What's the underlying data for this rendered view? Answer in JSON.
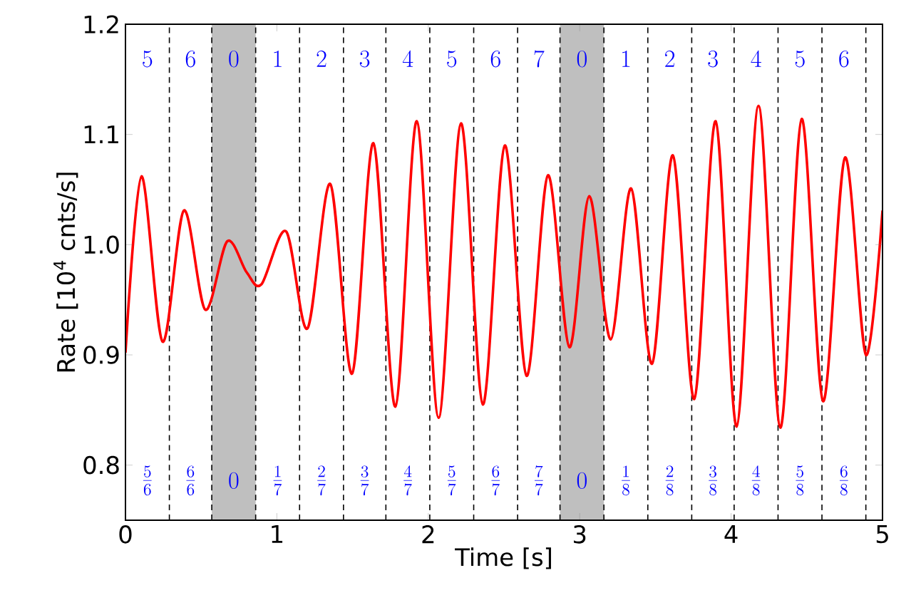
{
  "chart_data": {
    "type": "line",
    "xlabel": "Time [s]",
    "ylabel": "Rate [10$^{4}$ cnts/s]",
    "xlim": [
      0,
      5
    ],
    "ylim": [
      0.75,
      1.2
    ],
    "xticks": [
      0,
      1,
      2,
      3,
      4,
      5
    ],
    "yticks": [
      0.8,
      0.9,
      {
        "value": 1.0,
        "label": "1.0"
      },
      1.1,
      1.2
    ],
    "grid": false,
    "marker": "none",
    "line_style": "solid",
    "series": [
      {
        "color": "#ff0000",
        "x": [
          0,
          0.106,
          0.245,
          0.386,
          0.527,
          0.672,
          0.8,
          0.898,
          1.061,
          1.202,
          1.353,
          1.497,
          1.638,
          1.783,
          1.924,
          2.068,
          2.216,
          2.36,
          2.505,
          2.649,
          2.79,
          2.932,
          3.063,
          3.205,
          3.34,
          3.478,
          3.616,
          3.757,
          3.898,
          4.037,
          4.181,
          4.325,
          4.466,
          4.607,
          4.752,
          4.89,
          5.0
        ],
        "values": [
          0.902,
          1.062,
          0.912,
          1.031,
          0.941,
          1.003,
          0.975,
          0.964,
          1.012,
          0.924,
          1.055,
          0.883,
          1.092,
          0.853,
          1.112,
          0.843,
          1.11,
          0.855,
          1.09,
          0.881,
          1.063,
          0.907,
          1.044,
          0.914,
          1.051,
          0.892,
          1.081,
          0.86,
          1.112,
          0.835,
          1.126,
          0.834,
          1.114,
          0.858,
          1.079,
          0.9,
          1.031
        ]
      }
    ],
    "bands": [
      {
        "axis": "x",
        "from": 0.57,
        "to": 0.86,
        "color": "#bfbfbf"
      },
      {
        "axis": "x",
        "from": 2.87,
        "to": 3.16,
        "color": "#bfbfbf"
      }
    ],
    "ref_lines": [
      {
        "axis": "x",
        "value": 0.29,
        "color": "#000000",
        "line_style": "dashed"
      },
      {
        "axis": "x",
        "value": 0.57,
        "color": "#000000",
        "line_style": "dashed"
      },
      {
        "axis": "x",
        "value": 0.86,
        "color": "#000000",
        "line_style": "dashed"
      },
      {
        "axis": "x",
        "value": 1.15,
        "color": "#000000",
        "line_style": "dashed"
      },
      {
        "axis": "x",
        "value": 1.44,
        "color": "#000000",
        "line_style": "dashed"
      },
      {
        "axis": "x",
        "value": 1.72,
        "color": "#000000",
        "line_style": "dashed"
      },
      {
        "axis": "x",
        "value": 2.01,
        "color": "#000000",
        "line_style": "dashed"
      },
      {
        "axis": "x",
        "value": 2.3,
        "color": "#000000",
        "line_style": "dashed"
      },
      {
        "axis": "x",
        "value": 2.59,
        "color": "#000000",
        "line_style": "dashed"
      },
      {
        "axis": "x",
        "value": 2.87,
        "color": "#000000",
        "line_style": "dashed"
      },
      {
        "axis": "x",
        "value": 3.16,
        "color": "#000000",
        "line_style": "dashed"
      },
      {
        "axis": "x",
        "value": 3.45,
        "color": "#000000",
        "line_style": "dashed"
      },
      {
        "axis": "x",
        "value": 3.74,
        "color": "#000000",
        "line_style": "dashed"
      },
      {
        "axis": "x",
        "value": 4.02,
        "color": "#000000",
        "line_style": "dashed"
      },
      {
        "axis": "x",
        "value": 4.31,
        "color": "#000000",
        "line_style": "dashed"
      },
      {
        "axis": "x",
        "value": 4.6,
        "color": "#000000",
        "line_style": "dashed"
      },
      {
        "axis": "x",
        "value": 4.89,
        "color": "#000000",
        "line_style": "dashed"
      }
    ],
    "annotations": [
      "5",
      "6",
      "0",
      "1",
      "2",
      "3",
      "4",
      "5",
      "6",
      "7",
      "0",
      "1",
      "2",
      "3",
      "4",
      "5",
      "6",
      "\\frac{5}{6}",
      "\\frac{6}{6}",
      "0",
      "\\frac{1}{7}",
      "\\frac{2}{7}",
      "\\frac{3}{7}",
      "\\frac{4}{7}",
      "\\frac{5}{7}",
      "\\frac{6}{7}",
      "\\frac{7}{7}",
      "0",
      "\\frac{1}{8}",
      "\\frac{2}{8}",
      "\\frac{3}{8}",
      "\\frac{4}{8}",
      "\\frac{5}{8}",
      "\\frac{6}{8}"
    ]
  }
}
